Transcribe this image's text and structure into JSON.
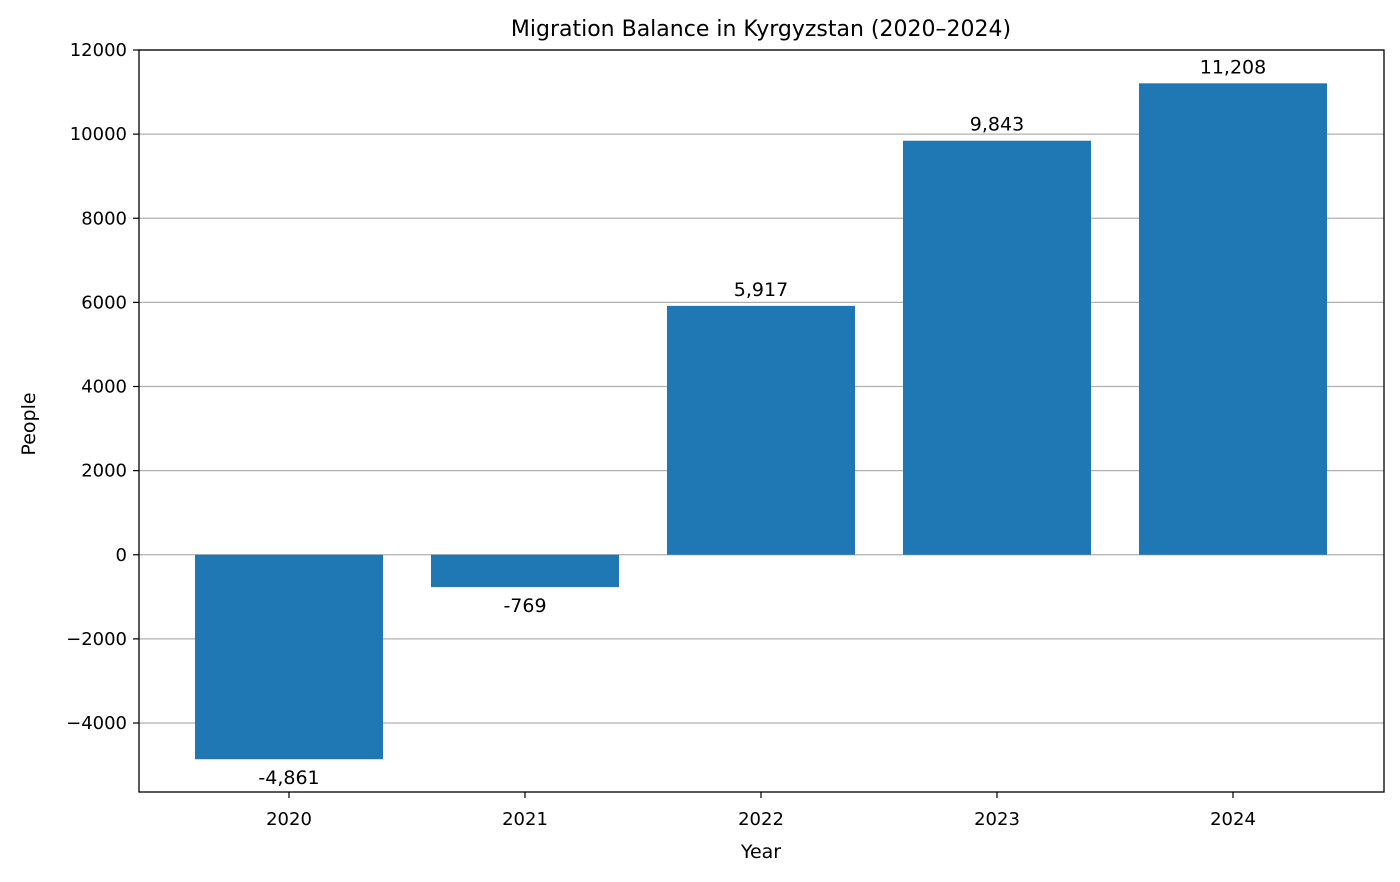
{
  "chart_data": {
    "type": "bar",
    "title": "Migration Balance in Kyrgyzstan (2020–2024)",
    "xlabel": "Year",
    "ylabel": "People",
    "categories": [
      "2020",
      "2021",
      "2022",
      "2023",
      "2024"
    ],
    "values": [
      -4861,
      -769,
      5917,
      9843,
      11208
    ],
    "data_labels": [
      "-4,861",
      "-769",
      "5,917",
      "9,843",
      "11,208"
    ],
    "ylim": [
      -5640,
      12000
    ],
    "yticks": [
      -4000,
      -2000,
      0,
      2000,
      4000,
      6000,
      8000,
      10000,
      12000
    ],
    "ytick_labels": [
      "−4000",
      "−2000",
      "0",
      "2000",
      "4000",
      "6000",
      "8000",
      "10000",
      "12000"
    ],
    "grid": "horizontal",
    "bar_color": "#1f77b4",
    "grid_color": "#b0b0b0",
    "axis_color": "#000000"
  }
}
